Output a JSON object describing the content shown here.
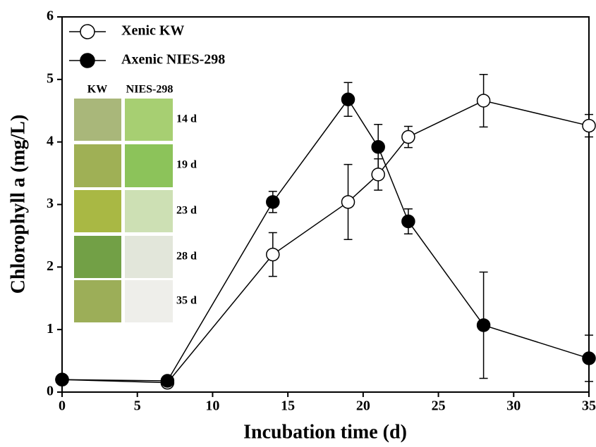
{
  "chart_data": {
    "type": "line",
    "xlabel": "Incubation time (d)",
    "ylabel": "Chlorophyll a (mg/L)",
    "xlim": [
      0,
      35
    ],
    "xticks": [
      0,
      5,
      10,
      15,
      20,
      25,
      30,
      35
    ],
    "ylim": [
      0,
      6
    ],
    "yticks": [
      0,
      1,
      2,
      3,
      4,
      5,
      6
    ],
    "grid": false,
    "legend": "upper left",
    "x": [
      0,
      7,
      14,
      19,
      21,
      23,
      28,
      35
    ],
    "series": [
      {
        "name": "Xenic KW",
        "color": "#ffffff",
        "marker": "open",
        "values": [
          0.2,
          0.15,
          2.2,
          3.04,
          3.48,
          4.08,
          4.66,
          4.26
        ],
        "errors": [
          0.03,
          0.03,
          0.35,
          0.6,
          0.25,
          0.17,
          0.42,
          0.18
        ]
      },
      {
        "name": "Axenic NIES-298",
        "color": "#000000",
        "marker": "filled",
        "values": [
          0.2,
          0.18,
          3.04,
          4.68,
          3.92,
          2.73,
          1.07,
          0.54
        ],
        "errors": [
          0.02,
          0.02,
          0.17,
          0.27,
          0.36,
          0.2,
          0.85,
          0.37
        ]
      }
    ],
    "inset": {
      "columns": [
        "KW",
        "NIES-298"
      ],
      "rows": [
        "14 d",
        "19 d",
        "23 d",
        "28 d",
        "35 d"
      ]
    }
  }
}
